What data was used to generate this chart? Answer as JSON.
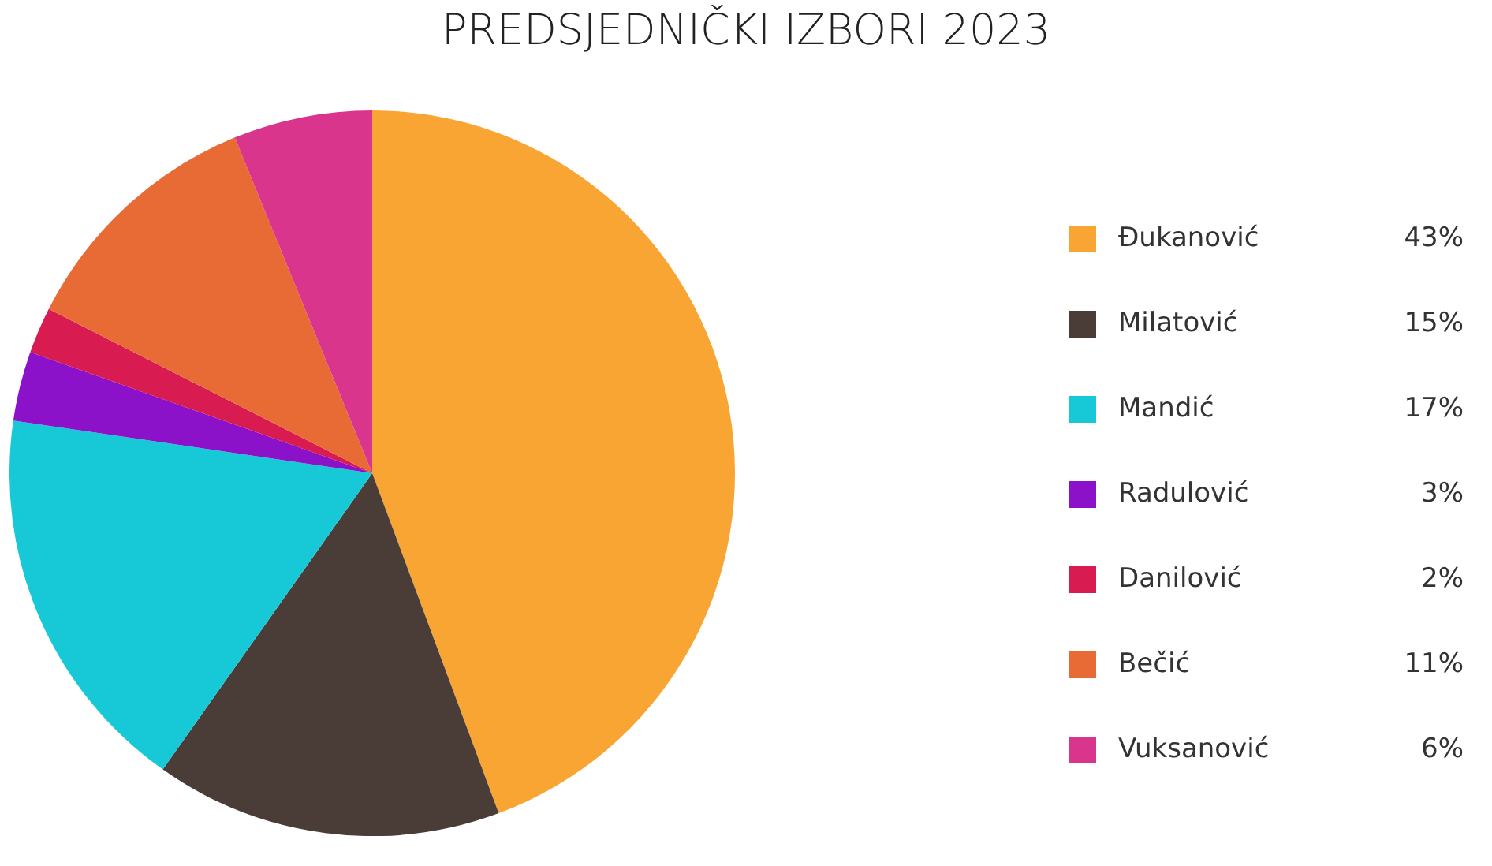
{
  "chart_data": {
    "type": "pie",
    "title": "PREDSJEDNIČKI IZBORI 2023",
    "categories": [
      "Đukanović",
      "Milatović",
      "Mandić",
      "Radulović",
      "Danilović",
      "Bečić",
      "Vuksanović"
    ],
    "values": [
      43,
      15,
      17,
      3,
      2,
      11,
      6
    ],
    "colors": [
      "#f9a533",
      "#4a3c36",
      "#17c9d6",
      "#8b12c8",
      "#d81b50",
      "#e86b35",
      "#d9358d"
    ],
    "value_labels": [
      "43%",
      "15%",
      "17%",
      "3%",
      "2%",
      "11%",
      "6%"
    ],
    "legend": "right"
  }
}
